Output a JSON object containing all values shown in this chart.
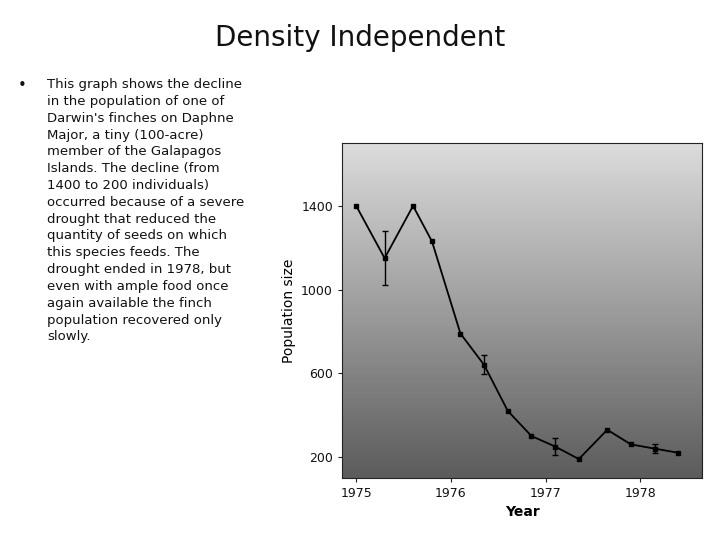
{
  "title": "Density Independent",
  "bullet_text": "This graph shows the decline\nin the population of one of\nDarwin's finches on Daphne\nMajor, a tiny (100-acre)\nmember of the Galapagos\nIslands. The decline (from\n1400 to 200 individuals)\noccurred because of a severe\ndrought that reduced the\nquantity of seeds on which\nthis species feeds. The\ndrought ended in 1978, but\neven with ample food once\nagain available the finch\npopulation recovered only\nslowly.",
  "xlabel": "Year",
  "ylabel": "Population size",
  "x_ticks": [
    1975,
    1976,
    1977,
    1978
  ],
  "x_data": [
    1975.0,
    1975.3,
    1975.6,
    1975.8,
    1976.1,
    1976.35,
    1976.6,
    1976.85,
    1977.1,
    1977.35,
    1977.65,
    1977.9,
    1978.15,
    1978.4
  ],
  "y_data": [
    1400,
    1150,
    1400,
    1230,
    790,
    640,
    420,
    300,
    250,
    190,
    330,
    260,
    240,
    220
  ],
  "y_ticks": [
    200,
    600,
    1000,
    1400
  ],
  "ylim": [
    100,
    1700
  ],
  "xlim": [
    1974.85,
    1978.65
  ],
  "bg_color": "#b8b8b8",
  "line_color": "#000000",
  "marker": "s",
  "marker_size": 3.5,
  "title_fontsize": 20,
  "axis_label_fontsize": 10,
  "tick_fontsize": 9,
  "bullet_fontsize": 9.5,
  "figure_bg": "#ffffff",
  "errorbar_indices": [
    1,
    5,
    8,
    12
  ],
  "errorbar_yerr": [
    130,
    45,
    40,
    20
  ]
}
